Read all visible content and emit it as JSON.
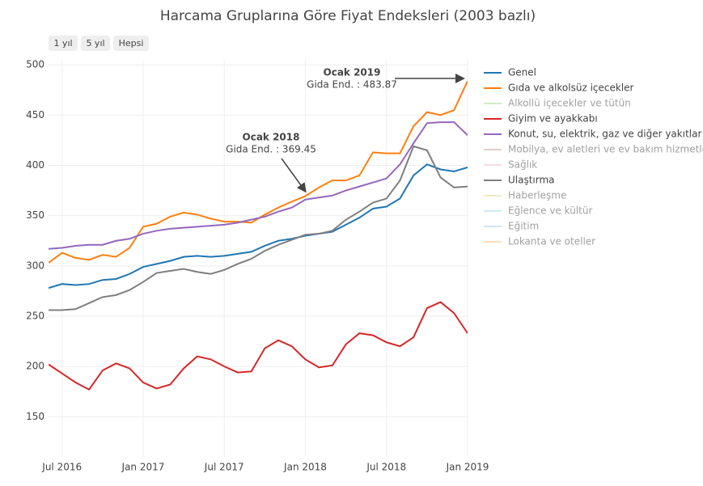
{
  "chart_data": {
    "type": "line",
    "title": "Harcama Gruplarına Göre Fiyat Endeksleri (2003 bazlı)",
    "range_buttons": [
      "1 yıl",
      "5 yıl",
      "Hepsi"
    ],
    "x": [
      "2016-06",
      "2016-07",
      "2016-08",
      "2016-09",
      "2016-10",
      "2016-11",
      "2016-12",
      "2017-01",
      "2017-02",
      "2017-03",
      "2017-04",
      "2017-05",
      "2017-06",
      "2017-07",
      "2017-08",
      "2017-09",
      "2017-10",
      "2017-11",
      "2017-12",
      "2018-01",
      "2018-02",
      "2018-03",
      "2018-04",
      "2018-05",
      "2018-06",
      "2018-07",
      "2018-08",
      "2018-09",
      "2018-10",
      "2018-11",
      "2018-12",
      "2019-01"
    ],
    "xlim": [
      "2016-06",
      "2019-01"
    ],
    "xticks": [
      {
        "value": "2016-07",
        "label": "Jul 2016"
      },
      {
        "value": "2017-01",
        "label": "Jan 2017"
      },
      {
        "value": "2017-07",
        "label": "Jul 2017"
      },
      {
        "value": "2018-01",
        "label": "Jan 2018"
      },
      {
        "value": "2018-07",
        "label": "Jul 2018"
      },
      {
        "value": "2019-01",
        "label": "Jan 2019"
      }
    ],
    "ylim": [
      110,
      505
    ],
    "yticks": [
      150,
      200,
      250,
      300,
      350,
      400,
      450,
      500
    ],
    "grid": true,
    "series": [
      {
        "name": "Genel",
        "color": "#1f77b4",
        "visible": true,
        "values": [
          278,
          282,
          281,
          282,
          286,
          287,
          292,
          299,
          302,
          305,
          309,
          310,
          309,
          310,
          312,
          314,
          320,
          325,
          327,
          330,
          332,
          334,
          341,
          348,
          357,
          359,
          367,
          390,
          401,
          396,
          394,
          398
        ]
      },
      {
        "name": "Gıda ve alkolsüz içecekler",
        "color": "#ff7f0e",
        "visible": true,
        "values": [
          303,
          313,
          308,
          306,
          311,
          309,
          318,
          339,
          342,
          349,
          353,
          351,
          347,
          344,
          344,
          343,
          351,
          358,
          364,
          369.45,
          378,
          385,
          385,
          390,
          413,
          412,
          412,
          439,
          453,
          450,
          455,
          483.87
        ]
      },
      {
        "name": "Alkollü içecekler ve tütün",
        "color": "#98df8a",
        "visible": false
      },
      {
        "name": "Giyim ve ayakkabı",
        "color": "#d62728",
        "visible": true,
        "values": [
          202,
          193,
          184,
          177,
          196,
          203,
          198,
          184,
          178,
          182,
          198,
          210,
          207,
          200,
          194,
          195,
          218,
          226,
          220,
          207,
          199,
          201,
          222,
          233,
          231,
          224,
          220,
          229,
          258,
          264,
          253,
          233
        ]
      },
      {
        "name": "Konut, su, elektrik, gaz ve diğer yakıtlar",
        "color": "#9467bd",
        "visible": true,
        "values": [
          317,
          318,
          320,
          321,
          321,
          325,
          327,
          332,
          335,
          337,
          338,
          339,
          340,
          341,
          343,
          346,
          349,
          354,
          358,
          366,
          368,
          370,
          375,
          379,
          383,
          387,
          401,
          422,
          442,
          443,
          443,
          430
        ]
      },
      {
        "name": "Mobilya, ev aletleri ve ev bakım hizmetleri",
        "color": "#c49c94",
        "visible": false
      },
      {
        "name": "Sağlık",
        "color": "#f7b6d2",
        "visible": false
      },
      {
        "name": "Ulaştırma",
        "color": "#7f7f7f",
        "visible": true,
        "values": [
          256,
          256,
          257,
          263,
          269,
          271,
          276,
          284,
          293,
          295,
          297,
          294,
          292,
          296,
          302,
          307,
          315,
          321,
          326,
          331,
          332,
          335,
          346,
          354,
          363,
          367,
          385,
          419,
          415,
          388,
          378,
          379
        ]
      },
      {
        "name": "Haberleşme",
        "color": "#dbdb8d",
        "visible": false
      },
      {
        "name": "Eğlence ve kültür",
        "color": "#9edae5",
        "visible": false
      },
      {
        "name": "Eğitim",
        "color": "#aec7e8",
        "visible": false
      },
      {
        "name": "Lokanta ve oteller",
        "color": "#ffbb78",
        "visible": false
      }
    ],
    "annotations": [
      {
        "title": "Ocak 2019",
        "text": "Gida End. : 483.87"
      },
      {
        "title": "Ocak 2018",
        "text": "Gida End. : 369.45"
      }
    ]
  }
}
